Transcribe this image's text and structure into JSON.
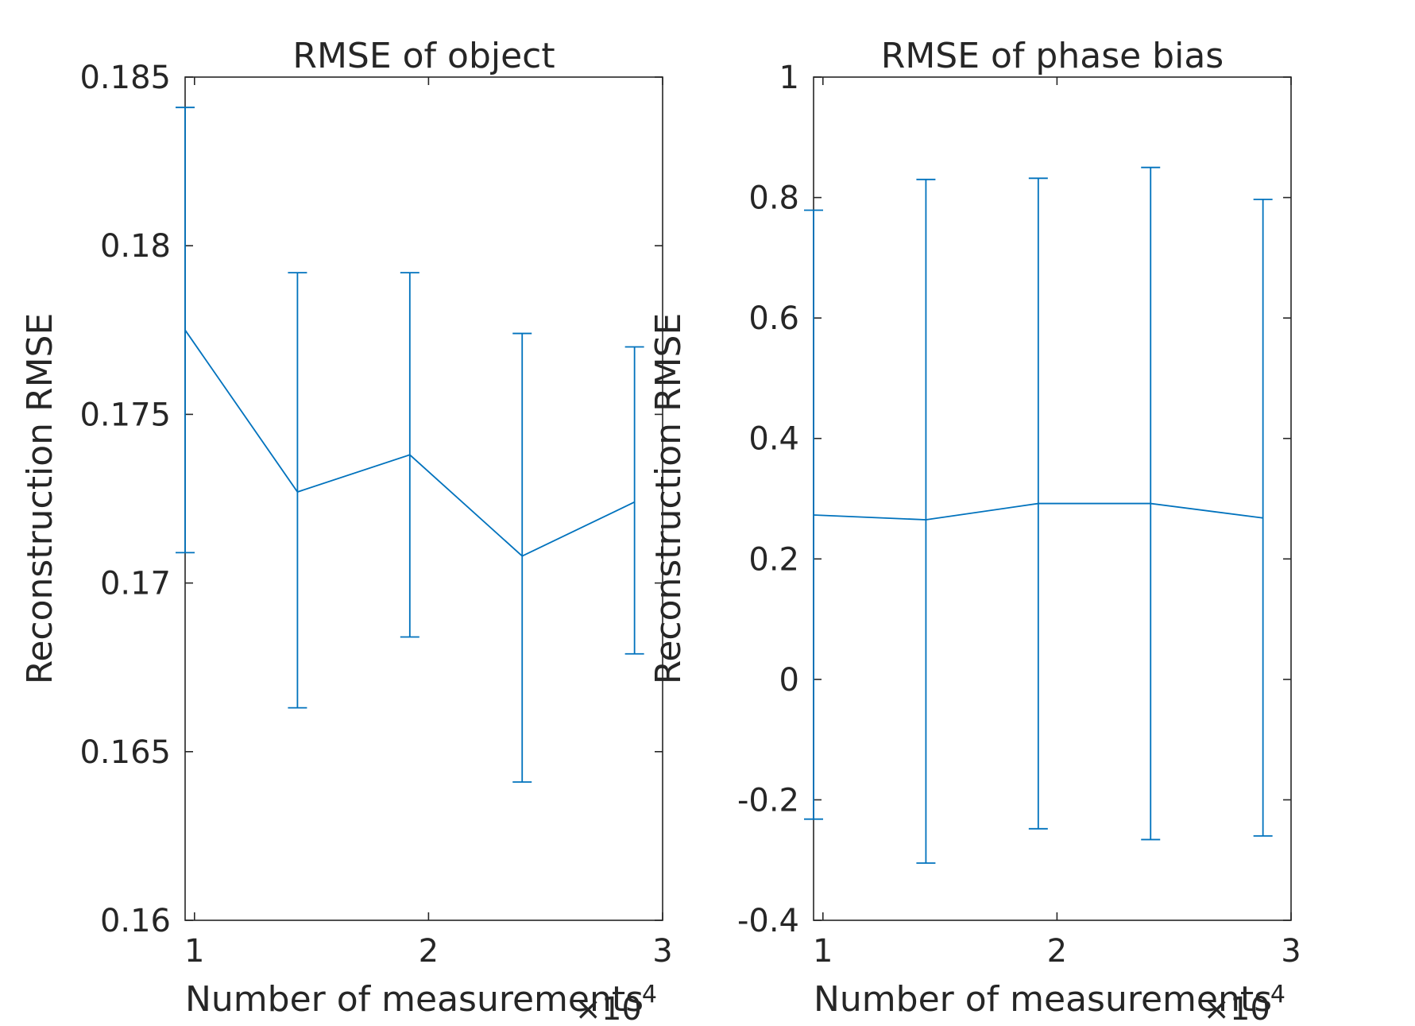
{
  "chart_data": [
    {
      "type": "line",
      "error_bars": true,
      "title": "RMSE of object",
      "xlabel": "Number of measurements",
      "ylabel": "Reconstruction RMSE",
      "x_exponent_label": "×10",
      "x_exponent_power": "4",
      "xlim": [
        0.96,
        3.0
      ],
      "ylim": [
        0.16,
        0.185
      ],
      "xticks": [
        1,
        2,
        3
      ],
      "xtick_labels": [
        "1",
        "2",
        "3"
      ],
      "yticks": [
        0.16,
        0.165,
        0.17,
        0.175,
        0.18,
        0.185
      ],
      "ytick_labels": [
        "0.16",
        "0.165",
        "0.17",
        "0.175",
        "0.18",
        "0.185"
      ],
      "grid": false,
      "color": "#0072BD",
      "series": [
        {
          "x": [
            0.96,
            1.44,
            1.92,
            2.4,
            2.88
          ],
          "y": [
            0.1775,
            0.1727,
            0.1738,
            0.1708,
            0.1724
          ],
          "err_low": [
            0.1709,
            0.1663,
            0.1684,
            0.1641,
            0.1679
          ],
          "err_high": [
            0.1841,
            0.1792,
            0.1792,
            0.1774,
            0.177
          ]
        }
      ]
    },
    {
      "type": "line",
      "error_bars": true,
      "title": "RMSE of phase bias",
      "xlabel": "Number of measurements",
      "ylabel": "Reconstruction RMSE",
      "x_exponent_label": "×10",
      "x_exponent_power": "4",
      "xlim": [
        0.96,
        3.0
      ],
      "ylim": [
        -0.4,
        1.0
      ],
      "xticks": [
        1,
        2,
        3
      ],
      "xtick_labels": [
        "1",
        "2",
        "3"
      ],
      "yticks": [
        -0.4,
        -0.2,
        0,
        0.2,
        0.4,
        0.6,
        0.8,
        1
      ],
      "ytick_labels": [
        "-0.4",
        "-0.2",
        "0",
        "0.2",
        "0.4",
        "0.6",
        "0.8",
        "1"
      ],
      "grid": false,
      "color": "#0072BD",
      "series": [
        {
          "x": [
            0.96,
            1.44,
            1.92,
            2.4,
            2.88
          ],
          "y": [
            0.273,
            0.265,
            0.292,
            0.292,
            0.268
          ],
          "err_low": [
            -0.232,
            -0.305,
            -0.248,
            -0.266,
            -0.26
          ],
          "err_high": [
            0.779,
            0.83,
            0.832,
            0.85,
            0.797
          ]
        }
      ]
    }
  ]
}
